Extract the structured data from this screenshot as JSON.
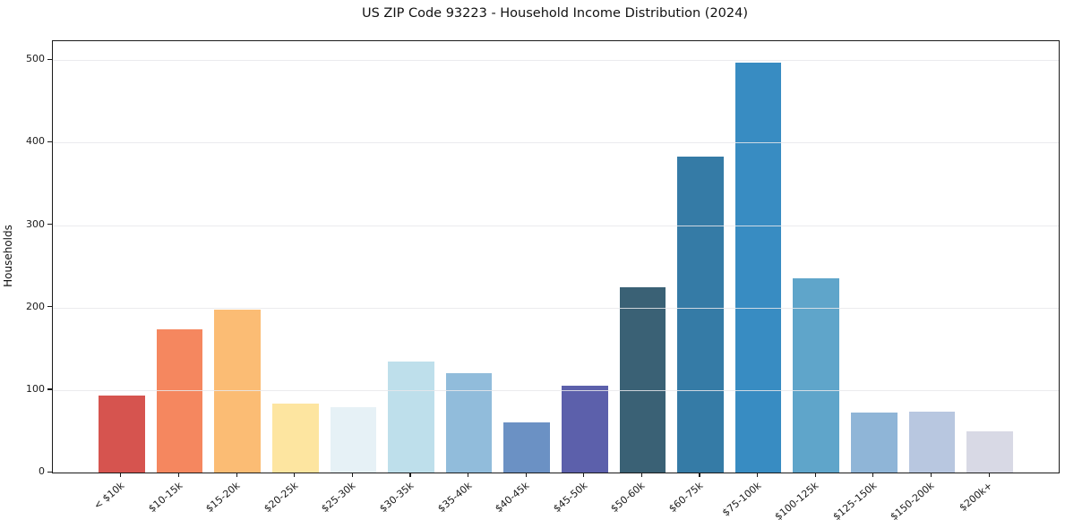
{
  "chart_data": {
    "type": "bar",
    "title": "US ZIP Code 93223 - Household Income Distribution (2024)",
    "xlabel": "",
    "ylabel": "Households",
    "categories": [
      "< $10k",
      "$10-15k",
      "$15-20k",
      "$20-25k",
      "$25-30k",
      "$30-35k",
      "$35-40k",
      "$40-45k",
      "$45-50k",
      "$50-60k",
      "$60-75k",
      "$75-100k",
      "$100-125k",
      "$125-150k",
      "$150-200k",
      "$200k+"
    ],
    "values": [
      93,
      174,
      198,
      84,
      79,
      135,
      120,
      61,
      105,
      225,
      383,
      497,
      236,
      73,
      74,
      50
    ],
    "bar_colors": [
      "#d6544f",
      "#f5875f",
      "#fbbc74",
      "#fde5a0",
      "#e6f1f6",
      "#bedfeb",
      "#91bcdb",
      "#6b91c4",
      "#5c60ab",
      "#3a6175",
      "#357ba6",
      "#388cc2",
      "#5fa5ca",
      "#8fb5d7",
      "#b8c7e0",
      "#d8d9e5"
    ],
    "yticks": [
      0,
      100,
      200,
      300,
      400,
      500
    ],
    "ylim": [
      0,
      523
    ],
    "grid": "horizontal",
    "x_tick_rotation": 45,
    "legend": "none"
  }
}
